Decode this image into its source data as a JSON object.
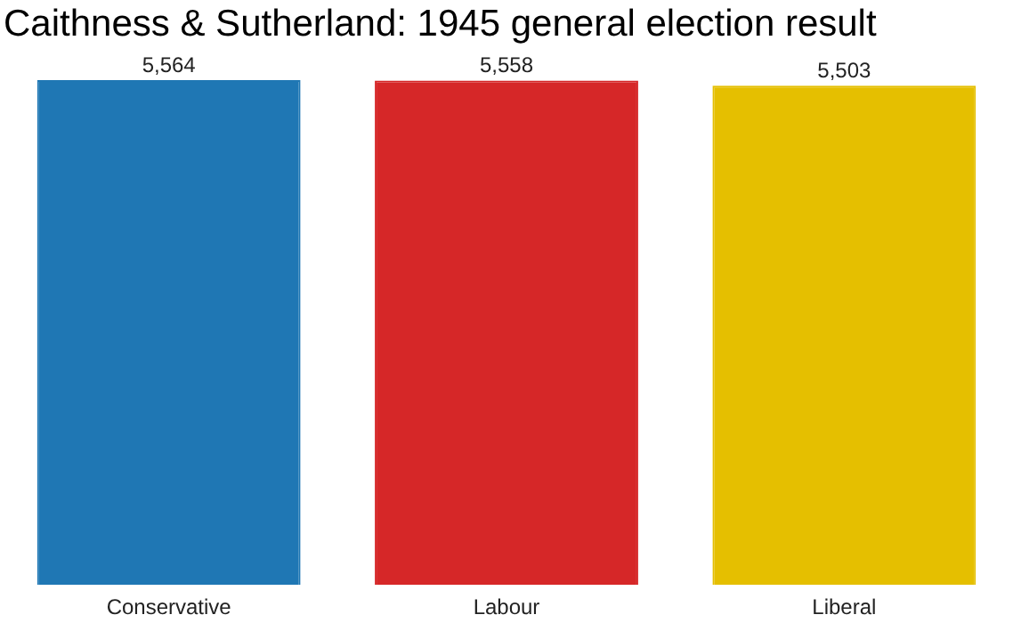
{
  "chart_data": {
    "type": "bar",
    "title": "Caithness & Sutherland: 1945 general election result",
    "categories": [
      "Conservative",
      "Labour",
      "Liberal"
    ],
    "values": [
      5564,
      5558,
      5503
    ],
    "colors": [
      "#1f77b4",
      "#d62728",
      "#e5bf00"
    ],
    "value_labels": [
      "5,564",
      "5,558",
      "5,503"
    ],
    "grid": false,
    "legend": false
  }
}
